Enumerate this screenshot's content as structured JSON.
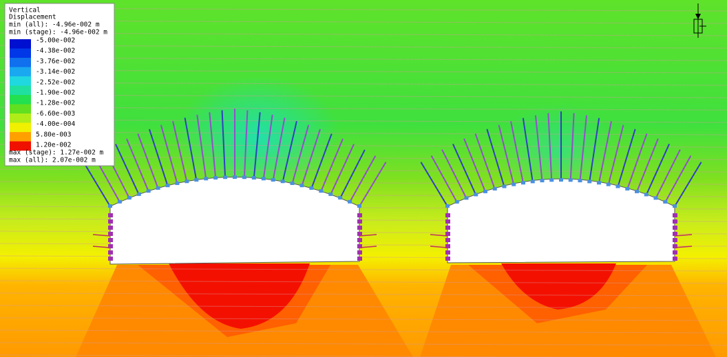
{
  "legend": {
    "title": [
      "Vertical",
      "Displacement"
    ],
    "min": [
      "min (all): -4.96e-002 m",
      "min (stage): -4.96e-002 m"
    ],
    "entries": [
      "-5.00e-002",
      "-4.38e-002",
      "-3.76e-002",
      "-3.14e-002",
      "-2.52e-002",
      "-1.90e-002",
      "-1.28e-002",
      "-6.60e-003",
      "-4.00e-004",
      "5.80e-003",
      "1.20e-002"
    ],
    "max": [
      "max (stage): 1.27e-002 m",
      "max (all): 2.07e-002 m"
    ]
  }
}
